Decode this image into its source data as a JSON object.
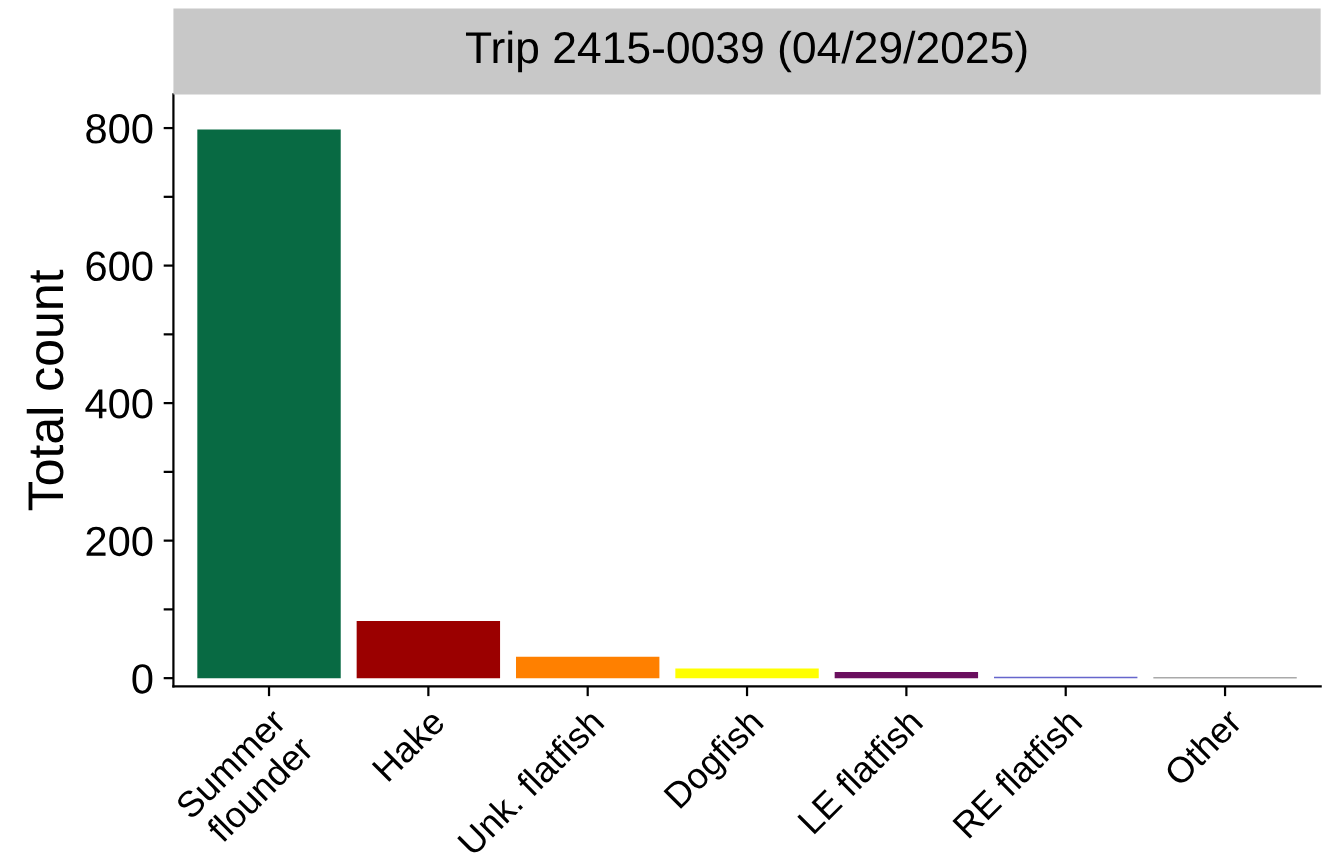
{
  "chart_data": {
    "type": "bar",
    "title": "Trip 2415-0039 (04/29/2025)",
    "ylabel": "Total count",
    "categories": [
      "Summer\nflounder",
      "Hake",
      "Unk. flatfish",
      "Dogfish",
      "LE flatfish",
      "RE flatfish",
      "Other"
    ],
    "values": [
      798,
      83,
      31,
      14,
      9,
      2,
      1
    ],
    "colors": [
      "#086a43",
      "#9b0000",
      "#ff8000",
      "#ffff00",
      "#6a0f5e",
      "#6666cc",
      "#555555"
    ],
    "ylim": [
      -12,
      849
    ],
    "yticks": [
      0,
      {
        "value": 100,
        "label": null
      },
      200,
      {
        "value": 300,
        "label": null
      },
      400,
      {
        "value": 500,
        "label": null
      },
      600,
      {
        "value": 700,
        "label": null
      },
      800
    ],
    "grid": false,
    "legend": false
  }
}
